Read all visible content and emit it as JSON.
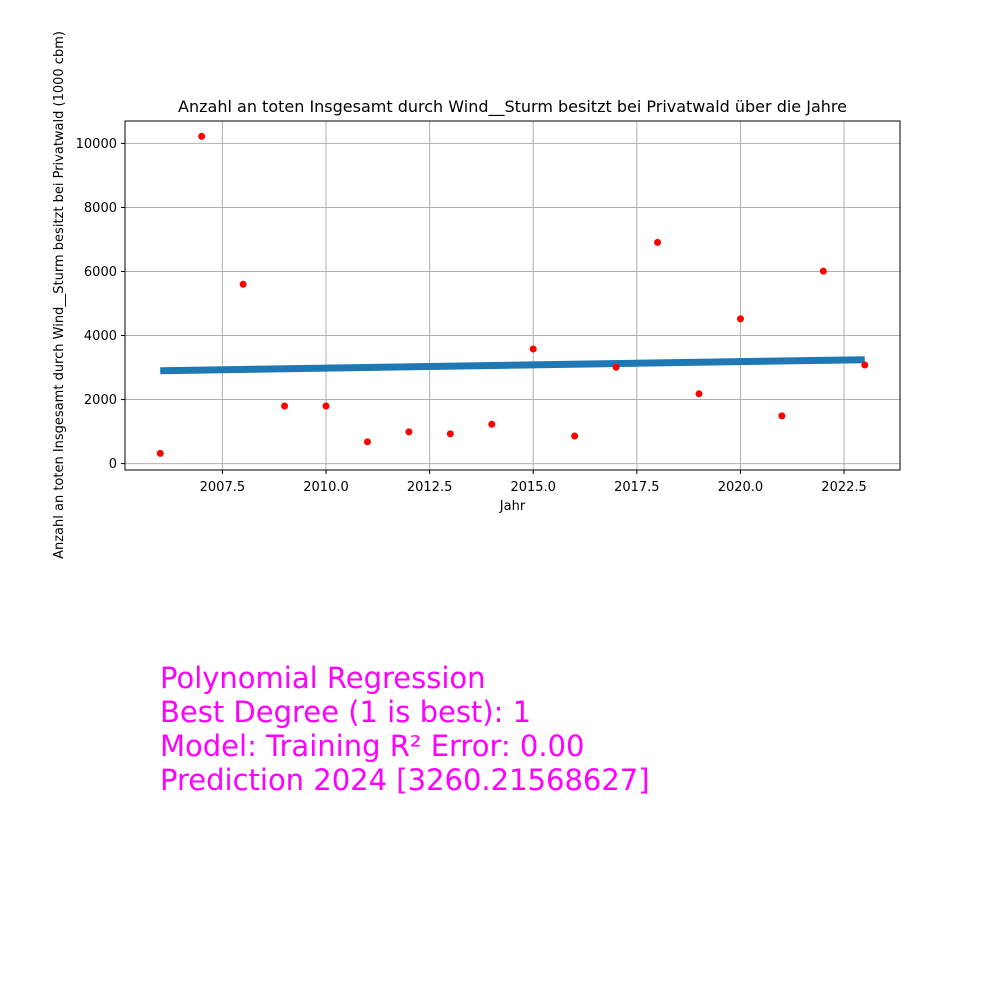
{
  "chart_data": {
    "type": "scatter",
    "title": "Anzahl an toten Insgesamt durch Wind__Sturm besitzt bei Privatwald über die Jahre",
    "xlabel": "Jahr",
    "ylabel": "Anzahl an toten Insgesamt durch Wind__Sturm besitzt bei Privatwald (1000 cbm)",
    "xlim": [
      2005.15,
      2023.85
    ],
    "ylim": [
      -200,
      10700
    ],
    "grid": true,
    "x_ticks": [
      2007.5,
      2010.0,
      2012.5,
      2015.0,
      2017.5,
      2020.0,
      2022.5
    ],
    "x_tick_labels": [
      "2007.5",
      "2010.0",
      "2012.5",
      "2015.0",
      "2017.5",
      "2020.0",
      "2022.5"
    ],
    "y_ticks": [
      0,
      2000,
      4000,
      6000,
      8000,
      10000
    ],
    "y_tick_labels": [
      "0",
      "2000",
      "4000",
      "6000",
      "8000",
      "10000"
    ],
    "points": {
      "color": "#ff0000",
      "x": [
        2006,
        2007,
        2008,
        2009,
        2010,
        2011,
        2012,
        2013,
        2014,
        2015,
        2016,
        2017,
        2018,
        2019,
        2020,
        2021,
        2022,
        2023
      ],
      "y": [
        320,
        10220,
        5600,
        1800,
        1800,
        680,
        990,
        930,
        1230,
        3580,
        860,
        3010,
        6910,
        2180,
        4520,
        1490,
        6010,
        3080
      ]
    },
    "fit_line": {
      "color": "#1f77b4",
      "x": [
        2006,
        2023
      ],
      "y": [
        2900,
        3245
      ]
    }
  },
  "annotation": {
    "color": "#ff00ff",
    "lines": [
      "Polynomial Regression",
      "Best Degree (1 is best): 1",
      "Model: Training R² Error: 0.00",
      "Prediction 2024 [3260.21568627]"
    ]
  }
}
